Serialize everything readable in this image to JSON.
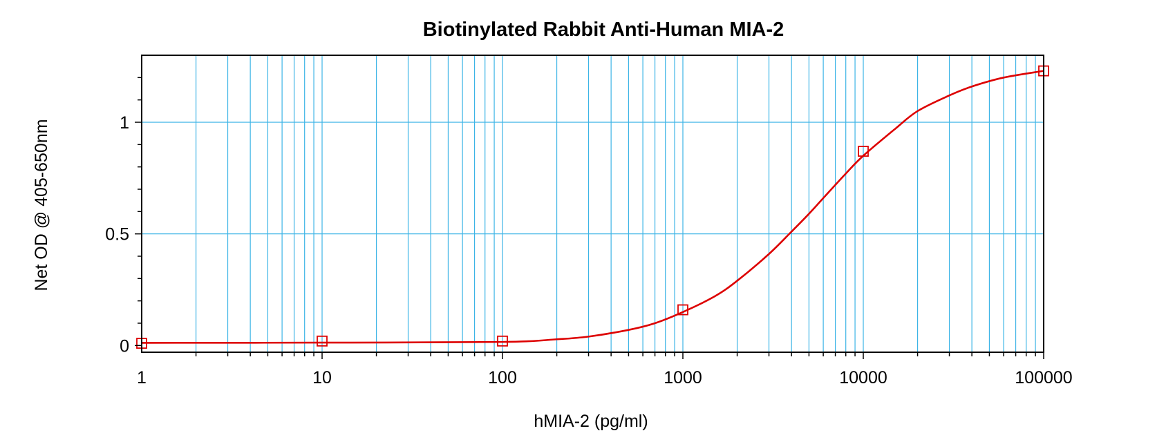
{
  "chart_data": {
    "type": "line",
    "title": "Biotinylated Rabbit Anti-Human MIA-2",
    "xlabel": "hMIA-2 (pg/ml)",
    "ylabel": "Net OD @ 405-650nm",
    "xscale": "log",
    "xlim": [
      1,
      100000
    ],
    "ylim": [
      -0.03,
      1.3
    ],
    "grid": true,
    "xticks": [
      1,
      10,
      100,
      1000,
      10000,
      100000
    ],
    "xtick_labels": [
      "1",
      "10",
      "100",
      "1000",
      "10000",
      "100000"
    ],
    "yticks": [
      0,
      0.5,
      1
    ],
    "ytick_labels": [
      "0",
      "0.5",
      "1"
    ],
    "series": [
      {
        "marker": "square",
        "x": [
          1,
          10,
          100,
          1000,
          10000,
          100000
        ],
        "y": [
          0.01,
          0.02,
          0.02,
          0.16,
          0.87,
          1.23
        ]
      }
    ],
    "fitted_curve": {
      "x": [
        1,
        10,
        100,
        200,
        300,
        500,
        700,
        1000,
        1500,
        2000,
        3000,
        4000,
        5000,
        6000,
        8000,
        10000,
        15000,
        20000,
        30000,
        40000,
        60000,
        100000
      ],
      "y": [
        0.012,
        0.013,
        0.016,
        0.028,
        0.04,
        0.07,
        0.1,
        0.15,
        0.22,
        0.29,
        0.41,
        0.51,
        0.59,
        0.66,
        0.77,
        0.85,
        0.97,
        1.05,
        1.12,
        1.16,
        1.2,
        1.23
      ]
    },
    "colors": {
      "series": "#dd0000",
      "grid": "#3cb4e6",
      "axis": "#000000"
    }
  }
}
